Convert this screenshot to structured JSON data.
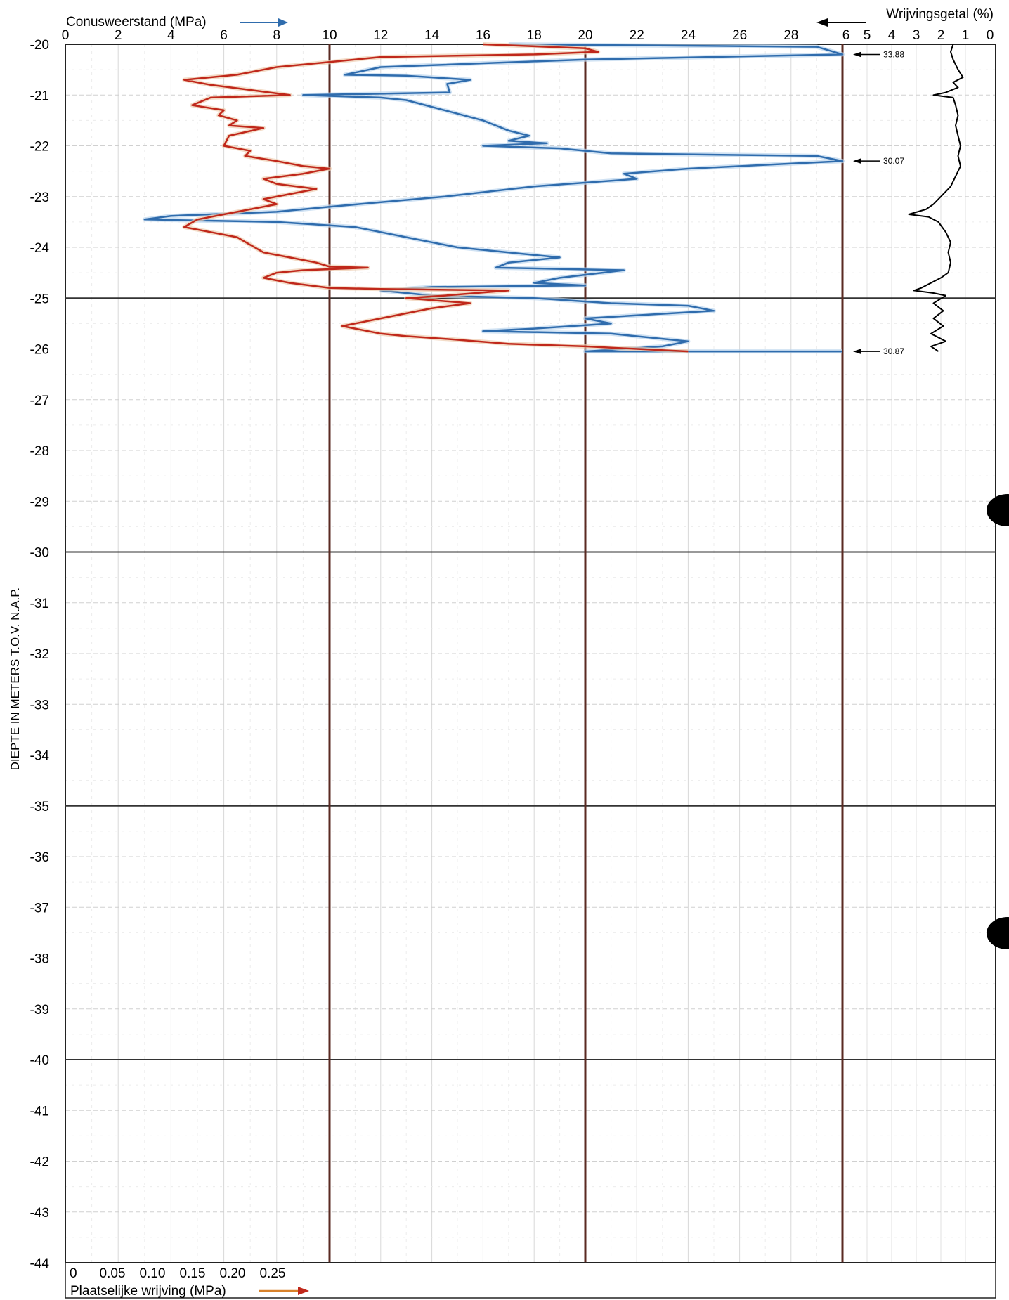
{
  "chart_data": {
    "type": "line",
    "ylabel": "DIEPTE IN METERS T.O.V.   N.A.P.",
    "ylim": [
      -44,
      -20
    ],
    "yticks": [
      -20,
      -21,
      -22,
      -23,
      -24,
      -25,
      -26,
      -27,
      -28,
      -29,
      -30,
      -31,
      -32,
      -33,
      -34,
      -35,
      -36,
      -37,
      -38,
      -39,
      -40,
      -41,
      -42,
      -43,
      -44
    ],
    "grid": true,
    "axes": {
      "cone": {
        "label": "Conusweerstand (MPa)",
        "range": [
          0,
          30
        ],
        "ticks": [
          0,
          2,
          4,
          6,
          8,
          10,
          12,
          14,
          16,
          18,
          20,
          22,
          24,
          26,
          28
        ],
        "color": "#2f6cad"
      },
      "friction_ratio": {
        "label": "Wrijvingsgetal (%)",
        "range": [
          0,
          6
        ],
        "reversed": true,
        "ticks": [
          6,
          5,
          4,
          3,
          2,
          1,
          0
        ],
        "color": "#000000"
      },
      "local_friction": {
        "label": "Plaatselijke wrijving (MPa)",
        "range": [
          0,
          0.25
        ],
        "ticks": [
          "0",
          "0.05",
          "0.10",
          "0.15",
          "0.20",
          "0.25"
        ],
        "color": "#c0281b"
      }
    },
    "annotations": [
      {
        "text": "33.88",
        "depth": -20.2
      },
      {
        "text": "30.07",
        "depth": -22.3
      },
      {
        "text": "30.87",
        "depth": -26.05
      }
    ],
    "series": [
      {
        "axis": "cone",
        "color": "#2f6cad",
        "points": [
          [
            17,
            -20.0
          ],
          [
            29,
            -20.05
          ],
          [
            30,
            -20.2
          ],
          [
            20,
            -20.3
          ],
          [
            12,
            -20.45
          ],
          [
            10.6,
            -20.6
          ],
          [
            13,
            -20.62
          ],
          [
            15.5,
            -20.7
          ],
          [
            14.6,
            -20.78
          ],
          [
            14.7,
            -20.95
          ],
          [
            9,
            -21.0
          ],
          [
            12,
            -21.05
          ],
          [
            13,
            -21.1
          ],
          [
            14.5,
            -21.3
          ],
          [
            16,
            -21.5
          ],
          [
            17,
            -21.7
          ],
          [
            17.8,
            -21.8
          ],
          [
            17,
            -21.9
          ],
          [
            18.5,
            -21.95
          ],
          [
            16,
            -22.0
          ],
          [
            19,
            -22.05
          ],
          [
            21,
            -22.15
          ],
          [
            29,
            -22.2
          ],
          [
            30,
            -22.3
          ],
          [
            24,
            -22.45
          ],
          [
            21.5,
            -22.55
          ],
          [
            22,
            -22.65
          ],
          [
            18,
            -22.8
          ],
          [
            14.5,
            -23.0
          ],
          [
            10,
            -23.2
          ],
          [
            8,
            -23.3
          ],
          [
            4,
            -23.38
          ],
          [
            3,
            -23.45
          ],
          [
            8,
            -23.5
          ],
          [
            11,
            -23.6
          ],
          [
            12,
            -23.7
          ],
          [
            13,
            -23.8
          ],
          [
            14,
            -23.9
          ],
          [
            15,
            -24.0
          ],
          [
            17,
            -24.1
          ],
          [
            19,
            -24.2
          ],
          [
            17,
            -24.3
          ],
          [
            16.5,
            -24.4
          ],
          [
            21.5,
            -24.45
          ],
          [
            19,
            -24.6
          ],
          [
            18,
            -24.7
          ],
          [
            20,
            -24.75
          ],
          [
            14,
            -24.78
          ],
          [
            12,
            -24.85
          ],
          [
            14,
            -24.95
          ],
          [
            18,
            -25.0
          ],
          [
            21,
            -25.1
          ],
          [
            24,
            -25.15
          ],
          [
            25,
            -25.25
          ],
          [
            20,
            -25.4
          ],
          [
            21,
            -25.5
          ],
          [
            18,
            -25.6
          ],
          [
            16,
            -25.65
          ],
          [
            21,
            -25.7
          ],
          [
            24,
            -25.85
          ],
          [
            23,
            -25.95
          ],
          [
            20,
            -26.05
          ],
          [
            30,
            -26.05
          ]
        ]
      },
      {
        "axis": "cone",
        "color": "#c0281b",
        "points": [
          [
            16,
            -20.0
          ],
          [
            20,
            -20.08
          ],
          [
            20.5,
            -20.15
          ],
          [
            18,
            -20.2
          ],
          [
            12,
            -20.25
          ],
          [
            10,
            -20.35
          ],
          [
            8,
            -20.45
          ],
          [
            6.5,
            -20.6
          ],
          [
            4.5,
            -20.7
          ],
          [
            5.5,
            -20.8
          ],
          [
            7,
            -20.9
          ],
          [
            8.5,
            -21.0
          ],
          [
            5.5,
            -21.05
          ],
          [
            4.8,
            -21.2
          ],
          [
            6,
            -21.3
          ],
          [
            5.8,
            -21.4
          ],
          [
            6.5,
            -21.5
          ],
          [
            6.2,
            -21.6
          ],
          [
            7.5,
            -21.65
          ],
          [
            6.2,
            -21.8
          ],
          [
            6,
            -22.0
          ],
          [
            7,
            -22.1
          ],
          [
            6.8,
            -22.2
          ],
          [
            8,
            -22.3
          ],
          [
            9,
            -22.4
          ],
          [
            10,
            -22.45
          ],
          [
            9,
            -22.55
          ],
          [
            7.5,
            -22.65
          ],
          [
            8,
            -22.75
          ],
          [
            9.5,
            -22.85
          ],
          [
            8.5,
            -22.95
          ],
          [
            7.5,
            -23.05
          ],
          [
            8,
            -23.15
          ],
          [
            6.5,
            -23.3
          ],
          [
            5,
            -23.45
          ],
          [
            4.5,
            -23.6
          ],
          [
            5.5,
            -23.7
          ],
          [
            6.5,
            -23.8
          ],
          [
            7,
            -23.95
          ],
          [
            7.5,
            -24.1
          ],
          [
            8.5,
            -24.2
          ],
          [
            9.5,
            -24.3
          ],
          [
            10,
            -24.38
          ],
          [
            11.5,
            -24.4
          ],
          [
            9,
            -24.45
          ],
          [
            8,
            -24.5
          ],
          [
            7.5,
            -24.6
          ],
          [
            8.5,
            -24.7
          ],
          [
            10,
            -24.8
          ],
          [
            12,
            -24.82
          ],
          [
            17,
            -24.85
          ],
          [
            14.5,
            -24.95
          ],
          [
            13,
            -25.0
          ],
          [
            15.5,
            -25.1
          ],
          [
            14,
            -25.2
          ],
          [
            13,
            -25.3
          ],
          [
            12,
            -25.4
          ],
          [
            10.5,
            -25.55
          ],
          [
            12,
            -25.7
          ],
          [
            13,
            -25.75
          ],
          [
            14.5,
            -25.8
          ],
          [
            17,
            -25.9
          ],
          [
            20,
            -25.95
          ],
          [
            22,
            -26.0
          ],
          [
            24,
            -26.05
          ]
        ]
      },
      {
        "axis": "friction_ratio",
        "color": "#000000",
        "points": [
          [
            1.5,
            -20.0
          ],
          [
            1.6,
            -20.15
          ],
          [
            1.5,
            -20.3
          ],
          [
            1.3,
            -20.5
          ],
          [
            1.1,
            -20.65
          ],
          [
            1.5,
            -20.75
          ],
          [
            1.3,
            -20.85
          ],
          [
            1.8,
            -20.95
          ],
          [
            2.3,
            -21.0
          ],
          [
            1.5,
            -21.05
          ],
          [
            1.4,
            -21.2
          ],
          [
            1.3,
            -21.4
          ],
          [
            1.4,
            -21.6
          ],
          [
            1.3,
            -21.8
          ],
          [
            1.2,
            -22.0
          ],
          [
            1.3,
            -22.2
          ],
          [
            1.2,
            -22.4
          ],
          [
            1.4,
            -22.6
          ],
          [
            1.6,
            -22.8
          ],
          [
            2.0,
            -23.0
          ],
          [
            2.3,
            -23.15
          ],
          [
            2.6,
            -23.25
          ],
          [
            3.3,
            -23.35
          ],
          [
            2.5,
            -23.4
          ],
          [
            2.1,
            -23.5
          ],
          [
            1.8,
            -23.7
          ],
          [
            1.6,
            -23.9
          ],
          [
            1.7,
            -24.1
          ],
          [
            1.6,
            -24.3
          ],
          [
            1.7,
            -24.5
          ],
          [
            2.0,
            -24.6
          ],
          [
            2.8,
            -24.8
          ],
          [
            3.1,
            -24.85
          ],
          [
            2.3,
            -24.9
          ],
          [
            1.8,
            -24.95
          ],
          [
            2.3,
            -25.1
          ],
          [
            1.9,
            -25.25
          ],
          [
            2.3,
            -25.4
          ],
          [
            1.9,
            -25.55
          ],
          [
            2.4,
            -25.7
          ],
          [
            1.8,
            -25.85
          ],
          [
            2.4,
            -25.95
          ],
          [
            2.1,
            -26.05
          ]
        ]
      }
    ]
  }
}
